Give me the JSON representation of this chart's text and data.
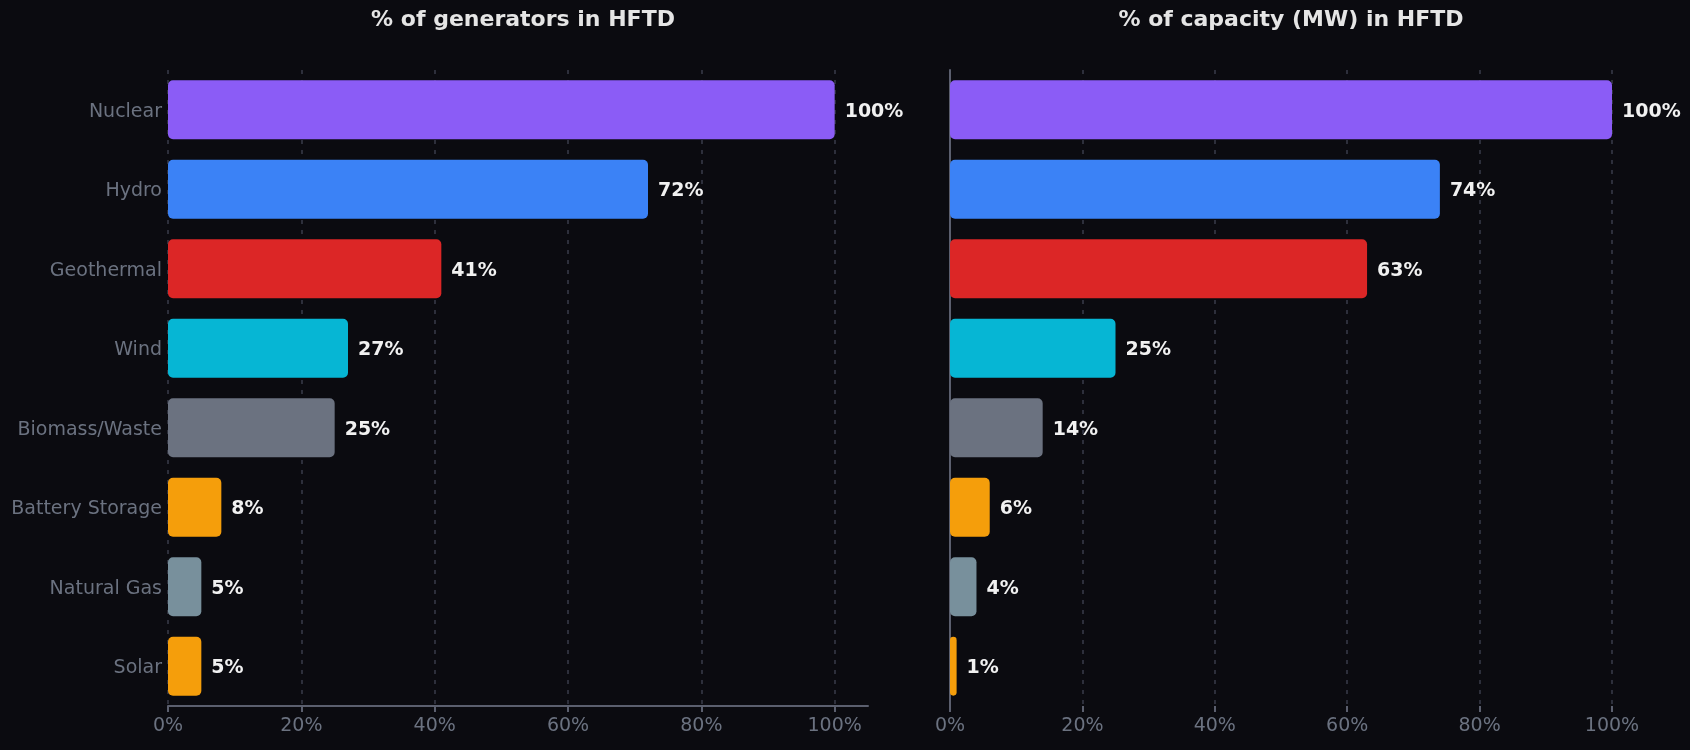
{
  "chart_data": [
    {
      "type": "bar",
      "orientation": "horizontal",
      "title": "% of generators in HFTD",
      "categories": [
        "Nuclear",
        "Hydro",
        "Geothermal",
        "Wind",
        "Biomass/Waste",
        "Battery Storage",
        "Natural Gas",
        "Solar"
      ],
      "values": [
        100,
        72,
        41,
        27,
        25,
        8,
        5,
        5
      ],
      "value_labels": [
        "100%",
        "72%",
        "41%",
        "27%",
        "25%",
        "8%",
        "5%",
        "5%"
      ],
      "colors": [
        "#8b5cf6",
        "#3b82f6",
        "#dc2626",
        "#06b6d4",
        "#6b7280",
        "#f59e0b",
        "#78909c",
        "#f59e0b"
      ],
      "xlim": [
        0,
        105
      ],
      "xticks": [
        {
          "value": 0,
          "label": "0%"
        },
        {
          "value": 20,
          "label": "20%"
        },
        {
          "value": 40,
          "label": "40%"
        },
        {
          "value": 60,
          "label": "60%"
        },
        {
          "value": 80,
          "label": "80%"
        },
        {
          "value": 100,
          "label": "100%"
        }
      ],
      "grid": "x"
    },
    {
      "type": "bar",
      "orientation": "horizontal",
      "title": "% of capacity (MW) in HFTD",
      "categories": [
        null,
        null,
        null,
        null,
        null,
        null,
        null,
        null
      ],
      "values": [
        100,
        74,
        63,
        25,
        14,
        6,
        4,
        1
      ],
      "value_labels": [
        "100%",
        "74%",
        "63%",
        "25%",
        "14%",
        "6%",
        "4%",
        "1%"
      ],
      "colors": [
        "#8b5cf6",
        "#3b82f6",
        "#dc2626",
        "#06b6d4",
        "#6b7280",
        "#f59e0b",
        "#78909c",
        "#f59e0b"
      ],
      "xlim": [
        0,
        100
      ],
      "xticks": [
        {
          "value": 0,
          "label": "0%"
        },
        {
          "value": 20,
          "label": "20%"
        },
        {
          "value": 40,
          "label": "40%"
        },
        {
          "value": 60,
          "label": "60%"
        },
        {
          "value": 80,
          "label": "80%"
        },
        {
          "value": 100,
          "label": "100%"
        }
      ],
      "grid": "x",
      "tick_labels": "x"
    }
  ]
}
